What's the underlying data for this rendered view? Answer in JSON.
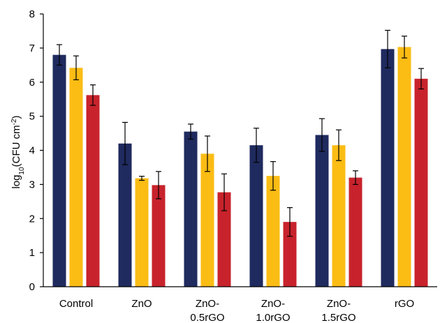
{
  "chart_data": {
    "type": "bar",
    "categories": [
      [
        "Control"
      ],
      [
        "ZnO"
      ],
      [
        "ZnO-",
        "0.5rGO"
      ],
      [
        "ZnO-",
        "1.0rGO"
      ],
      [
        "ZnO-",
        "1.5rGO"
      ],
      [
        "rGO"
      ]
    ],
    "ylabel": {
      "prefix": "log",
      "sub": "10",
      "mid": "(CFU cm",
      "sup": "-2",
      "suffix": ")"
    },
    "ylim": [
      0,
      8
    ],
    "yticks": [
      0,
      1,
      2,
      3,
      4,
      5,
      6,
      7,
      8
    ],
    "grid": false,
    "series": [
      {
        "color": "#1f2a5e",
        "values": [
          6.8,
          4.2,
          4.55,
          4.15,
          4.45,
          6.97
        ],
        "errors": [
          0.3,
          0.62,
          0.22,
          0.5,
          0.48,
          0.55
        ]
      },
      {
        "color": "#fbbc14",
        "values": [
          6.42,
          3.18,
          3.9,
          3.25,
          4.15,
          7.03
        ],
        "errors": [
          0.35,
          0.06,
          0.52,
          0.42,
          0.45,
          0.32
        ]
      },
      {
        "color": "#c8232c",
        "values": [
          5.62,
          2.98,
          2.77,
          1.9,
          3.2,
          6.1
        ],
        "errors": [
          0.3,
          0.4,
          0.54,
          0.42,
          0.2,
          0.3
        ]
      }
    ]
  }
}
